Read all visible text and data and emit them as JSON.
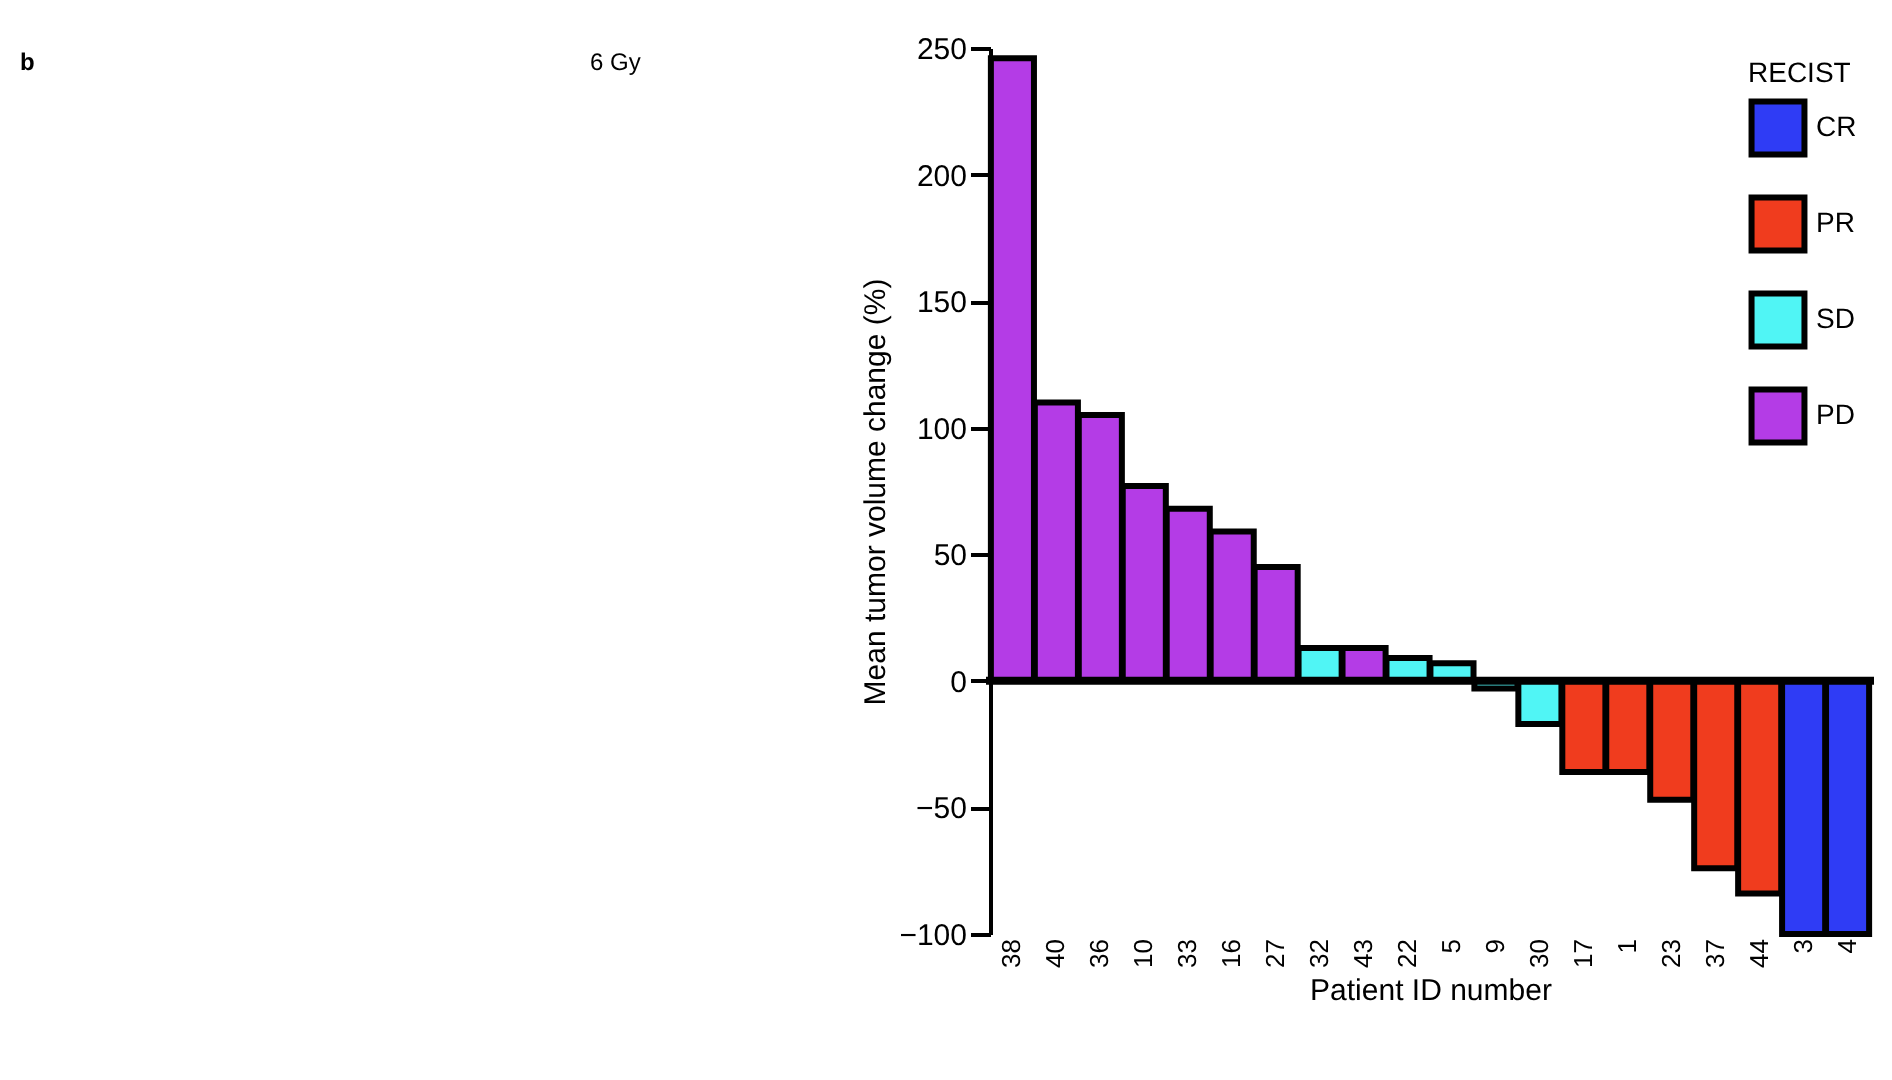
{
  "chart_data": {
    "type": "bar",
    "xlabel": "Patient ID number",
    "ylabel": "Mean tumor volume change (%)",
    "legend_title": "RECIST",
    "categories": [
      "38",
      "40",
      "36",
      "10",
      "33",
      "16",
      "27",
      "32",
      "43",
      "22",
      "5",
      "9",
      "30",
      "17",
      "1",
      "23",
      "37",
      "44",
      "3",
      "4"
    ],
    "series": [
      {
        "name": "CR",
        "color": "#2f3cf5",
        "values": [
          null,
          null,
          null,
          null,
          null,
          null,
          null,
          null,
          null,
          null,
          null,
          null,
          null,
          null,
          null,
          null,
          null,
          null,
          -100,
          -100
        ]
      },
      {
        "name": "PR",
        "color": "#f03c1e",
        "values": [
          null,
          null,
          null,
          null,
          null,
          null,
          null,
          null,
          null,
          null,
          null,
          null,
          null,
          -36,
          -36,
          -47,
          -74,
          -84,
          null,
          null
        ]
      },
      {
        "name": "SD",
        "color": "#50f5f5",
        "values": [
          null,
          null,
          null,
          null,
          null,
          null,
          null,
          13,
          null,
          9,
          7,
          -3,
          -17,
          null,
          null,
          null,
          null,
          null,
          null,
          null
        ]
      },
      {
        "name": "PD",
        "color": "#b43ce6",
        "values": [
          246,
          110,
          105,
          77,
          68,
          59,
          45,
          null,
          13,
          null,
          null,
          null,
          null,
          null,
          null,
          null,
          null,
          null,
          null,
          null
        ]
      }
    ],
    "ylim": [
      -100,
      250
    ],
    "yticks": [
      -100,
      -50,
      0,
      50,
      100,
      150,
      200,
      250
    ],
    "ref_lines": [
      {
        "axis": "y",
        "value": 0,
        "color": "#000000"
      }
    ],
    "legend": "top right",
    "grid": false,
    "annotations": [
      "b",
      "6 Gy"
    ]
  }
}
